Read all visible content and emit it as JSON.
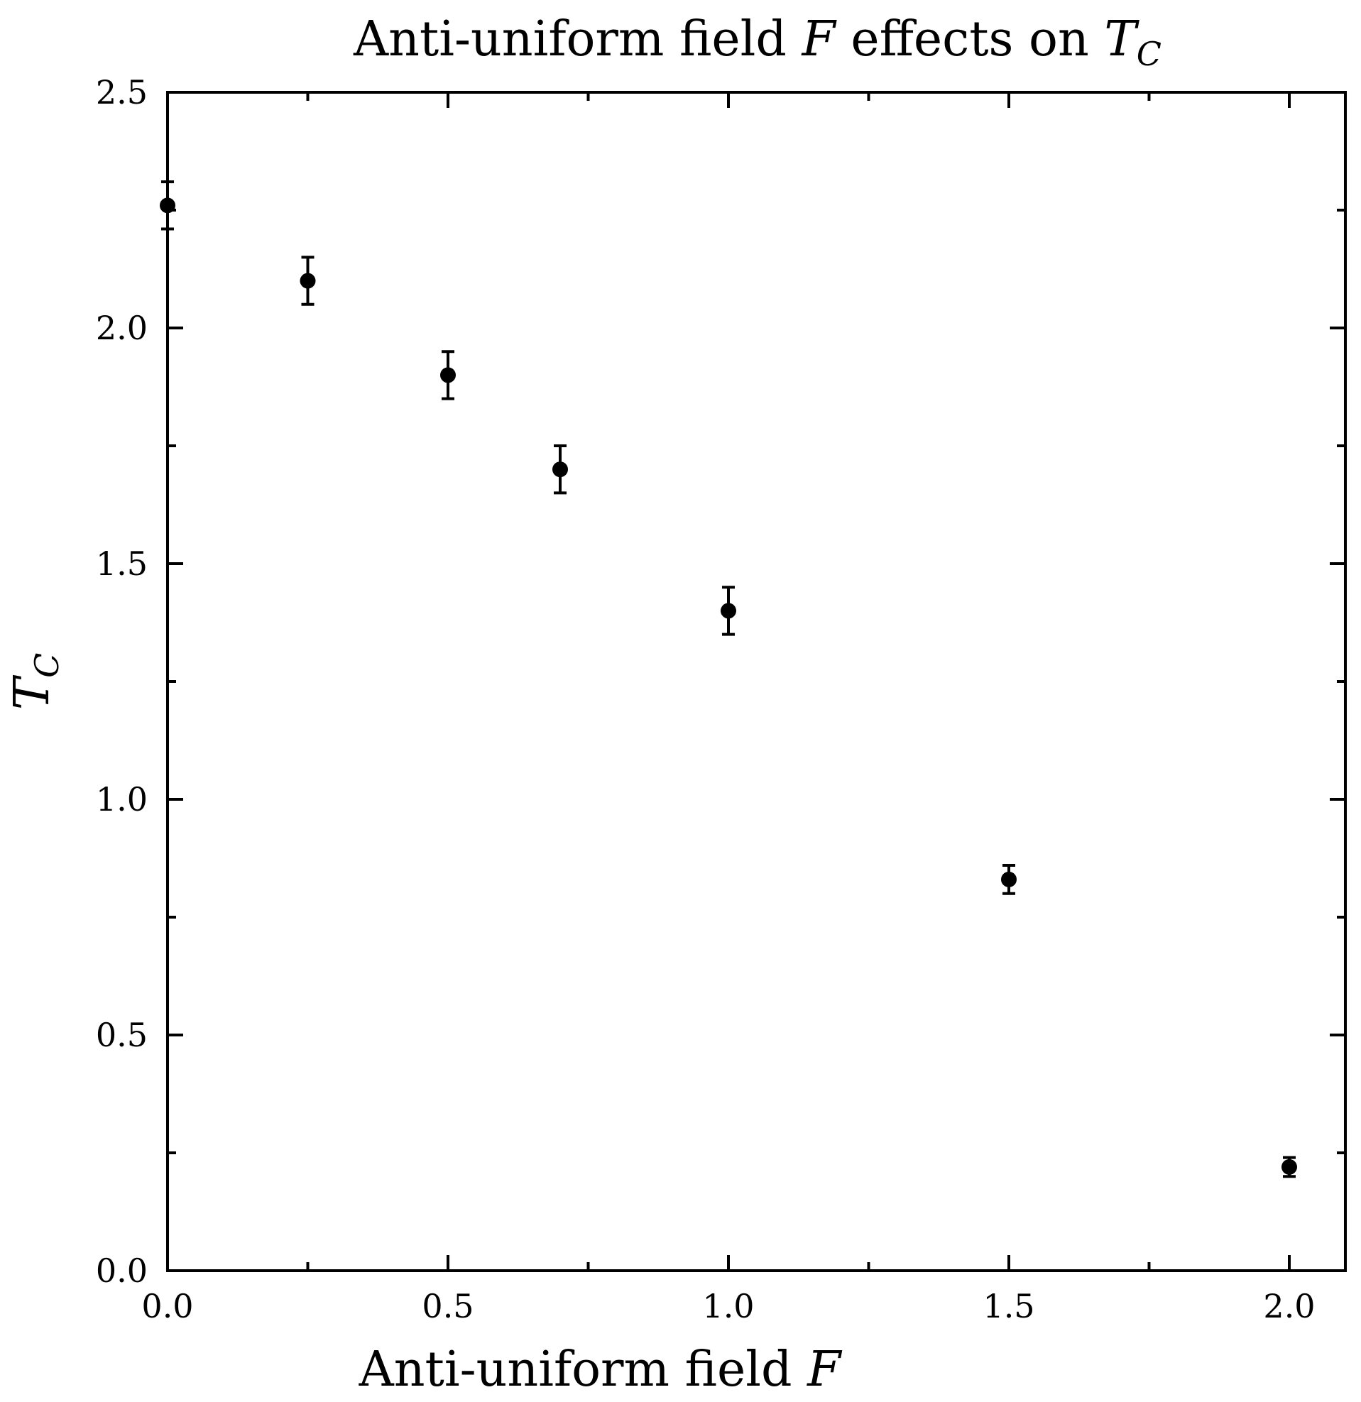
{
  "chart_data": {
    "type": "scatter",
    "title": {
      "prefix": "Anti-uniform field ",
      "var": "F",
      "middle": " effects on ",
      "sym": "T",
      "sub": "C"
    },
    "xlabel": {
      "prefix": "Anti-uniform field ",
      "var": "F"
    },
    "ylabel": {
      "sym": "T",
      "sub": "C"
    },
    "xlim": [
      0.0,
      2.1
    ],
    "ylim": [
      0.0,
      2.5
    ],
    "xticks": [
      0.0,
      0.5,
      1.0,
      1.5,
      2.0
    ],
    "xtick_labels": [
      "0.0",
      "0.5",
      "1.0",
      "1.5",
      "2.0"
    ],
    "xminor": [
      0.25,
      0.75,
      1.25,
      1.75
    ],
    "yticks": [
      0.0,
      0.5,
      1.0,
      1.5,
      2.0,
      2.5
    ],
    "ytick_labels": [
      "0.0",
      "0.5",
      "1.0",
      "1.5",
      "2.0",
      "2.5"
    ],
    "yminor": [
      0.25,
      0.75,
      1.25,
      1.75,
      2.25
    ],
    "grid": false,
    "series": [
      {
        "name": "T_C",
        "x": [
          0.0,
          0.25,
          0.5,
          0.7,
          1.0,
          1.5,
          2.0
        ],
        "y": [
          2.26,
          2.1,
          1.9,
          1.7,
          1.4,
          0.83,
          0.22
        ],
        "yerr": [
          0.05,
          0.05,
          0.05,
          0.05,
          0.05,
          0.03,
          0.02
        ]
      }
    ],
    "color": "#000000"
  }
}
